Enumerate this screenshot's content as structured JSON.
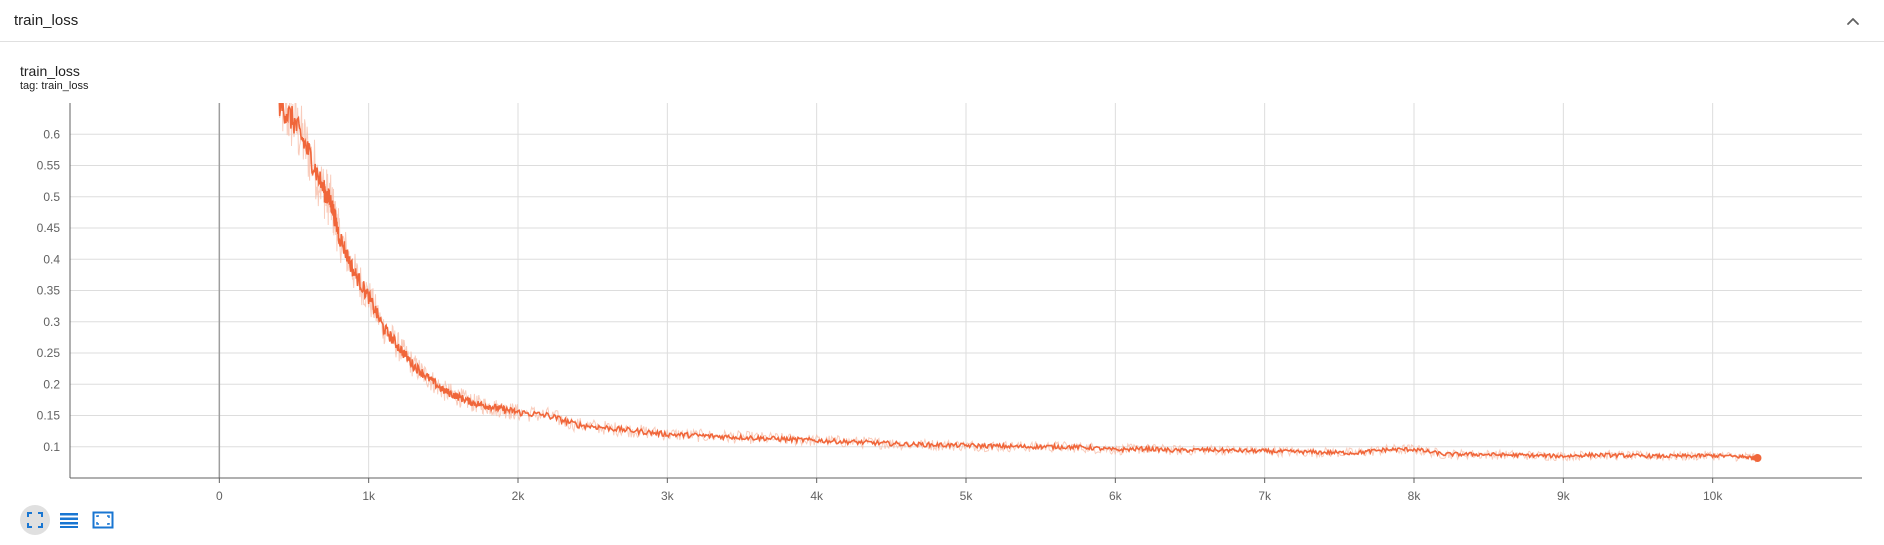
{
  "header": {
    "title": "train_loss"
  },
  "chart_header": {
    "title": "train_loss",
    "tag": "tag: train_loss"
  },
  "toolbar": {
    "items": [
      {
        "icon": "fit-domain-icon",
        "active": true
      },
      {
        "icon": "toggle-log-scale-icon",
        "active": false
      },
      {
        "icon": "expand-chart-icon",
        "active": false
      }
    ]
  },
  "colors": {
    "series": "#f0663a",
    "series_raw": "#f6b79f",
    "grid": "#dddddd",
    "axis_text": "#616161",
    "toolbar_icon": "#1976d2",
    "zero_line": "#9e9e9e"
  },
  "chart_data": {
    "type": "line",
    "title": "train_loss",
    "xlabel": "",
    "ylabel": "",
    "xlim": [
      -1000,
      11000
    ],
    "ylim": [
      0.05,
      0.65
    ],
    "x_ticks": [
      0,
      1000,
      2000,
      3000,
      4000,
      5000,
      6000,
      7000,
      8000,
      9000,
      10000
    ],
    "x_tick_labels": [
      "0",
      "1k",
      "2k",
      "3k",
      "4k",
      "5k",
      "6k",
      "7k",
      "8k",
      "9k",
      "10k"
    ],
    "y_ticks": [
      0.1,
      0.15,
      0.2,
      0.25,
      0.3,
      0.35,
      0.4,
      0.45,
      0.5,
      0.55,
      0.6
    ],
    "y_tick_labels": [
      "0.1",
      "0.15",
      "0.2",
      "0.25",
      "0.3",
      "0.35",
      "0.4",
      "0.45",
      "0.5",
      "0.55",
      "0.6"
    ],
    "grid": true,
    "legend": "none",
    "series": [
      {
        "x": [
          400,
          500,
          600,
          700,
          750,
          800,
          900,
          1000,
          1100,
          1200,
          1300,
          1400,
          1500,
          1600,
          1700,
          1800,
          1900,
          2000,
          2200,
          2400,
          2600,
          2800,
          3000,
          3200,
          3400,
          3600,
          3800,
          4000,
          4200,
          4400,
          4600,
          4800,
          5000,
          5200,
          5400,
          5600,
          5800,
          6000,
          6200,
          6400,
          6600,
          6800,
          7000,
          7200,
          7400,
          7600,
          7800,
          8000,
          8200,
          8400,
          8600,
          8800,
          9000,
          9200,
          9400,
          9600,
          9800,
          10000,
          10200,
          10300
        ],
        "values": [
          0.65,
          0.62,
          0.57,
          0.51,
          0.49,
          0.44,
          0.38,
          0.34,
          0.29,
          0.26,
          0.23,
          0.21,
          0.19,
          0.18,
          0.17,
          0.165,
          0.16,
          0.155,
          0.15,
          0.135,
          0.13,
          0.125,
          0.12,
          0.118,
          0.116,
          0.114,
          0.112,
          0.11,
          0.108,
          0.106,
          0.104,
          0.103,
          0.102,
          0.101,
          0.1,
          0.1,
          0.099,
          0.095,
          0.097,
          0.094,
          0.095,
          0.094,
          0.093,
          0.092,
          0.091,
          0.09,
          0.095,
          0.096,
          0.088,
          0.088,
          0.087,
          0.086,
          0.085,
          0.087,
          0.086,
          0.085,
          0.085,
          0.086,
          0.084,
          0.082
        ]
      }
    ]
  }
}
